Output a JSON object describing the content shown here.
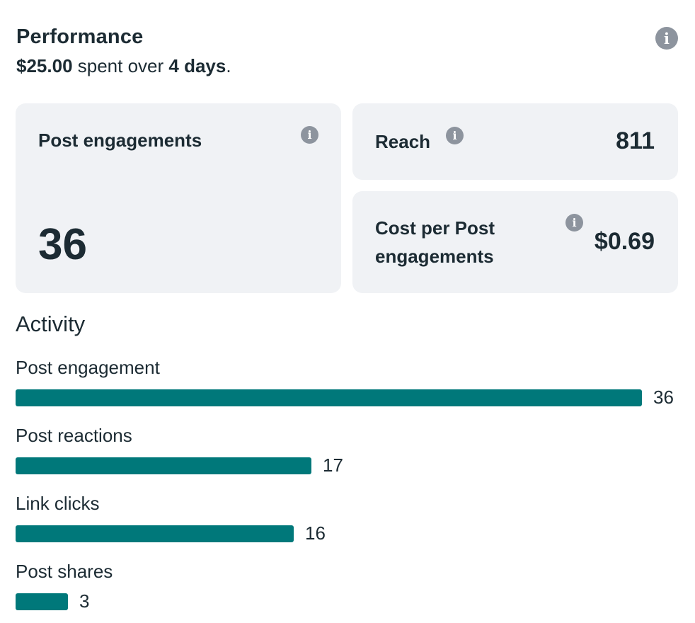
{
  "header": {
    "title": "Performance",
    "spent_amount": "$25.00",
    "spent_text": " spent over ",
    "days": "4 days",
    "period": "."
  },
  "cards": {
    "post_engagements": {
      "label": "Post engagements",
      "value": "36"
    },
    "reach": {
      "label": "Reach",
      "value": "811"
    },
    "cost_per": {
      "label_line1": "Cost per Post",
      "label_line2": "engagements",
      "value": "$0.69"
    }
  },
  "info_glyph": "i",
  "activity": {
    "title": "Activity",
    "max": 36,
    "items": [
      {
        "label": "Post engagement",
        "value": 36,
        "value_text": "36"
      },
      {
        "label": "Post reactions",
        "value": 17,
        "value_text": "17"
      },
      {
        "label": "Link clicks",
        "value": 16,
        "value_text": "16"
      },
      {
        "label": "Post shares",
        "value": 3,
        "value_text": "3"
      }
    ]
  },
  "colors": {
    "bar": "#00787a",
    "card_bg": "#f0f2f5",
    "icon": "#8d949e",
    "text": "#1c2b33"
  }
}
